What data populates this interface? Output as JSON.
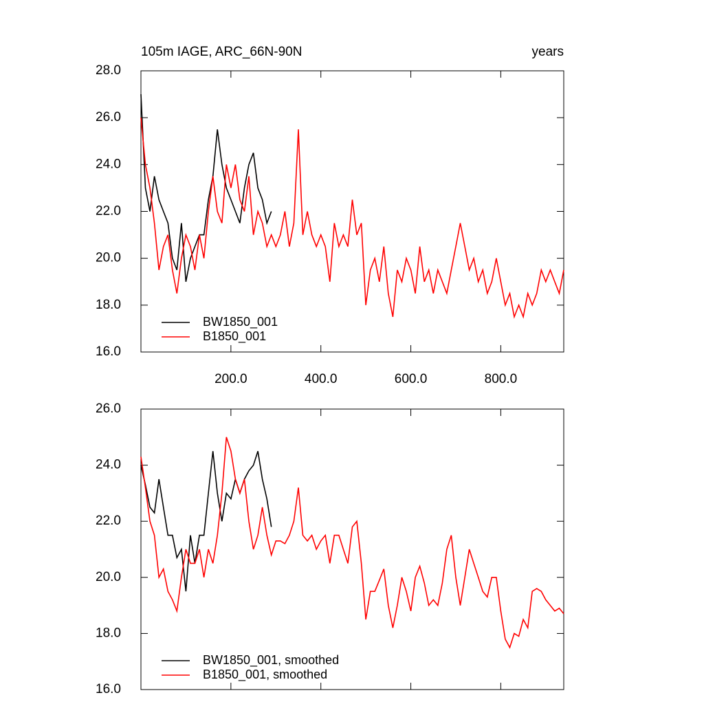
{
  "chart_data": [
    {
      "type": "line",
      "title": "105m IAGE, ARC_66N-90N",
      "subtitle": "years",
      "xlim": [
        0,
        940
      ],
      "ylim": [
        16,
        28
      ],
      "xticks": [
        {
          "value": 200,
          "label": "200.0"
        },
        {
          "value": 400,
          "label": "400.0"
        },
        {
          "value": 600,
          "label": "600.0"
        },
        {
          "value": 800,
          "label": "800.0"
        }
      ],
      "yticks": [
        {
          "value": 16,
          "label": "16.0"
        },
        {
          "value": 18,
          "label": "18.0"
        },
        {
          "value": 20,
          "label": "20.0"
        },
        {
          "value": 22,
          "label": "22.0"
        },
        {
          "value": 24,
          "label": "24.0"
        },
        {
          "value": 26,
          "label": "26.0"
        },
        {
          "value": 28,
          "label": "28.0"
        }
      ],
      "series": [
        {
          "name": "BW1850_001",
          "color": "#000000",
          "x": [
            0,
            10,
            20,
            30,
            40,
            50,
            60,
            70,
            80,
            90,
            100,
            110,
            120,
            130,
            140,
            150,
            160,
            170,
            180,
            190,
            200,
            210,
            220,
            230,
            240,
            250,
            260,
            270,
            280,
            290
          ],
          "values": [
            27.0,
            23.0,
            22.0,
            23.5,
            22.5,
            22.0,
            21.5,
            20.0,
            19.5,
            21.5,
            19.0,
            20.0,
            20.5,
            21.0,
            21.0,
            22.5,
            23.5,
            25.5,
            24.0,
            23.0,
            22.5,
            22.0,
            21.5,
            23.0,
            24.0,
            24.5,
            23.0,
            22.5,
            21.5,
            22.0
          ]
        },
        {
          "name": "B1850_001",
          "color": "#ff0000",
          "x": [
            0,
            10,
            20,
            30,
            40,
            50,
            60,
            70,
            80,
            90,
            100,
            110,
            120,
            130,
            140,
            150,
            160,
            170,
            180,
            190,
            200,
            210,
            220,
            230,
            240,
            250,
            260,
            270,
            280,
            290,
            300,
            310,
            320,
            330,
            340,
            350,
            360,
            370,
            380,
            390,
            400,
            410,
            420,
            430,
            440,
            450,
            460,
            470,
            480,
            490,
            500,
            510,
            520,
            530,
            540,
            550,
            560,
            570,
            580,
            590,
            600,
            610,
            620,
            630,
            640,
            650,
            660,
            670,
            680,
            690,
            700,
            710,
            720,
            730,
            740,
            750,
            760,
            770,
            780,
            790,
            800,
            810,
            820,
            830,
            840,
            850,
            860,
            870,
            880,
            890,
            900,
            910,
            920,
            930,
            940
          ],
          "values": [
            26.0,
            24.0,
            23.0,
            21.5,
            19.5,
            20.5,
            21.0,
            19.5,
            18.5,
            20.0,
            21.0,
            20.5,
            19.5,
            21.0,
            20.0,
            22.0,
            23.5,
            22.0,
            21.5,
            24.0,
            23.0,
            24.0,
            22.5,
            22.0,
            23.5,
            21.0,
            22.0,
            21.5,
            20.5,
            21.0,
            20.5,
            21.0,
            22.0,
            20.5,
            21.5,
            25.5,
            21.0,
            22.0,
            21.0,
            20.5,
            21.0,
            20.5,
            19.0,
            21.5,
            20.5,
            21.0,
            20.5,
            22.5,
            21.0,
            21.5,
            18.0,
            19.5,
            20.0,
            19.0,
            20.5,
            18.5,
            17.5,
            19.5,
            19.0,
            20.0,
            19.5,
            18.5,
            20.5,
            19.0,
            19.5,
            18.5,
            19.5,
            19.0,
            18.5,
            19.5,
            20.5,
            21.5,
            20.5,
            19.5,
            20.0,
            19.0,
            19.5,
            18.5,
            19.0,
            20.0,
            19.0,
            18.0,
            18.5,
            17.5,
            18.0,
            17.5,
            18.5,
            18.0,
            18.5,
            19.5,
            19.0,
            19.5,
            19.0,
            18.5,
            19.5
          ]
        }
      ]
    },
    {
      "type": "line",
      "xlim": [
        0,
        940
      ],
      "ylim": [
        16,
        26
      ],
      "xticks": [
        200,
        400,
        600,
        800
      ],
      "yticks": [
        {
          "value": 16,
          "label": "16.0"
        },
        {
          "value": 18,
          "label": "18.0"
        },
        {
          "value": 20,
          "label": "20.0"
        },
        {
          "value": 22,
          "label": "22.0"
        },
        {
          "value": 24,
          "label": "24.0"
        },
        {
          "value": 26,
          "label": "26.0"
        }
      ],
      "series": [
        {
          "name": "BW1850_001, smoothed",
          "color": "#000000",
          "x": [
            0,
            10,
            20,
            30,
            40,
            50,
            60,
            70,
            80,
            90,
            100,
            110,
            120,
            130,
            140,
            150,
            160,
            170,
            180,
            190,
            200,
            210,
            220,
            230,
            240,
            250,
            260,
            270,
            280,
            290
          ],
          "values": [
            24.0,
            23.3,
            22.5,
            22.3,
            23.5,
            22.5,
            21.5,
            21.5,
            20.7,
            21.0,
            19.5,
            21.5,
            20.5,
            21.5,
            21.5,
            23.0,
            24.5,
            23.0,
            22.0,
            23.0,
            22.8,
            23.5,
            23.0,
            23.5,
            23.8,
            24.0,
            24.5,
            23.5,
            22.8,
            21.8
          ]
        },
        {
          "name": "B1850_001, smoothed",
          "color": "#ff0000",
          "x": [
            0,
            10,
            20,
            30,
            40,
            50,
            60,
            70,
            80,
            90,
            100,
            110,
            120,
            130,
            140,
            150,
            160,
            170,
            180,
            190,
            200,
            210,
            220,
            230,
            240,
            250,
            260,
            270,
            280,
            290,
            300,
            310,
            320,
            330,
            340,
            350,
            360,
            370,
            380,
            390,
            400,
            410,
            420,
            430,
            440,
            450,
            460,
            470,
            480,
            490,
            500,
            510,
            520,
            530,
            540,
            550,
            560,
            570,
            580,
            590,
            600,
            610,
            620,
            630,
            640,
            650,
            660,
            670,
            680,
            690,
            700,
            710,
            720,
            730,
            740,
            750,
            760,
            770,
            780,
            790,
            800,
            810,
            820,
            830,
            840,
            850,
            860,
            870,
            880,
            890,
            900,
            910,
            920,
            930,
            940
          ],
          "values": [
            24.3,
            23.2,
            22.0,
            21.5,
            20.0,
            20.3,
            19.5,
            19.2,
            18.8,
            20.0,
            21.0,
            20.5,
            20.5,
            21.0,
            20.0,
            21.0,
            20.5,
            21.5,
            23.0,
            25.0,
            24.5,
            23.5,
            23.0,
            23.5,
            22.0,
            21.0,
            21.5,
            22.5,
            21.5,
            20.8,
            21.3,
            21.3,
            21.2,
            21.5,
            22.0,
            23.2,
            21.5,
            21.3,
            21.5,
            21.0,
            21.3,
            21.5,
            20.5,
            21.5,
            21.5,
            21.0,
            20.5,
            21.8,
            22.0,
            20.5,
            18.5,
            19.5,
            19.5,
            19.9,
            20.3,
            19.0,
            18.2,
            19.0,
            20.0,
            19.5,
            18.8,
            20.0,
            20.4,
            19.8,
            19.0,
            19.2,
            19.0,
            19.8,
            21.0,
            21.5,
            20.0,
            19.0,
            20.0,
            21.0,
            20.5,
            20.0,
            19.5,
            19.3,
            20.0,
            20.0,
            18.8,
            17.8,
            17.5,
            18.0,
            17.9,
            18.5,
            18.2,
            19.5,
            19.6,
            19.5,
            19.2,
            19.0,
            18.8,
            18.9,
            18.7
          ]
        }
      ]
    }
  ]
}
